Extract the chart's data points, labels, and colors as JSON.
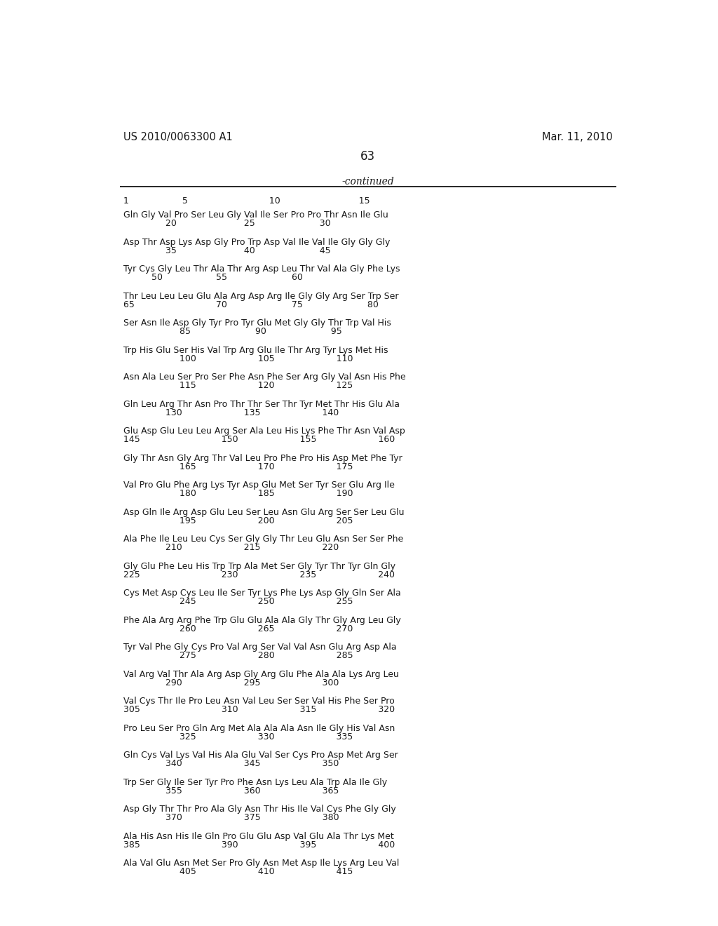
{
  "header_left": "US 2010/0063300 A1",
  "header_right": "Mar. 11, 2010",
  "page_number": "63",
  "continued_label": "-continued",
  "background_color": "#ffffff",
  "text_color": "#1a1a1a",
  "seq_blocks": [
    {
      "seq": "Gln Gly Val Pro Ser Leu Gly Val Ile Ser Pro Pro Thr Asn Ile Glu",
      "nums": "               20                        25                       30"
    },
    {
      "seq": "Asp Thr Asp Lys Asp Gly Pro Trp Asp Val Ile Val Ile Gly Gly Gly",
      "nums": "               35                        40                       45"
    },
    {
      "seq": "Tyr Cys Gly Leu Thr Ala Thr Arg Asp Leu Thr Val Ala Gly Phe Lys",
      "nums": "          50                   55                       60"
    },
    {
      "seq": "Thr Leu Leu Leu Glu Ala Arg Asp Arg Ile Gly Gly Arg Ser Trp Ser",
      "nums": "65                             70                       75                       80"
    },
    {
      "seq": "Ser Asn Ile Asp Gly Tyr Pro Tyr Glu Met Gly Gly Thr Trp Val His",
      "nums": "                    85                       90                       95"
    },
    {
      "seq": "Trp His Glu Ser His Val Trp Arg Glu Ile Thr Arg Tyr Lys Met His",
      "nums": "                    100                      105                      110"
    },
    {
      "seq": "Asn Ala Leu Ser Pro Ser Phe Asn Phe Ser Arg Gly Val Asn His Phe",
      "nums": "                    115                      120                      125"
    },
    {
      "seq": "Gln Leu Arg Thr Asn Pro Thr Thr Ser Thr Tyr Met Thr His Glu Ala",
      "nums": "               130                      135                      140"
    },
    {
      "seq": "Glu Asp Glu Leu Leu Arg Ser Ala Leu His Lys Phe Thr Asn Val Asp",
      "nums": "145                             150                      155                      160"
    },
    {
      "seq": "Gly Thr Asn Gly Arg Thr Val Leu Pro Phe Pro His Asp Met Phe Tyr",
      "nums": "                    165                      170                      175"
    },
    {
      "seq": "Val Pro Glu Phe Arg Lys Tyr Asp Glu Met Ser Tyr Ser Glu Arg Ile",
      "nums": "                    180                      185                      190"
    },
    {
      "seq": "Asp Gln Ile Arg Asp Glu Leu Ser Leu Asn Glu Arg Ser Ser Leu Glu",
      "nums": "                    195                      200                      205"
    },
    {
      "seq": "Ala Phe Ile Leu Leu Cys Ser Gly Gly Thr Leu Glu Asn Ser Ser Phe",
      "nums": "               210                      215                      220"
    },
    {
      "seq": "Gly Glu Phe Leu His Trp Trp Ala Met Ser Gly Tyr Thr Tyr Gln Gly",
      "nums": "225                             230                      235                      240"
    },
    {
      "seq": "Cys Met Asp Cys Leu Ile Ser Tyr Lys Phe Lys Asp Gly Gln Ser Ala",
      "nums": "                    245                      250                      255"
    },
    {
      "seq": "Phe Ala Arg Arg Phe Trp Glu Glu Ala Ala Gly Thr Gly Arg Leu Gly",
      "nums": "                    260                      265                      270"
    },
    {
      "seq": "Tyr Val Phe Gly Cys Pro Val Arg Ser Val Val Asn Glu Arg Asp Ala",
      "nums": "                    275                      280                      285"
    },
    {
      "seq": "Val Arg Val Thr Ala Arg Asp Gly Arg Glu Phe Ala Ala Lys Arg Leu",
      "nums": "               290                      295                      300"
    },
    {
      "seq": "Val Cys Thr Ile Pro Leu Asn Val Leu Ser Ser Val His Phe Ser Pro",
      "nums": "305                             310                      315                      320"
    },
    {
      "seq": "Pro Leu Ser Pro Gln Arg Met Ala Ala Ala Asn Ile Gly His Val Asn",
      "nums": "                    325                      330                      335"
    },
    {
      "seq": "Gln Cys Val Lys Val His Ala Glu Val Ser Cys Pro Asp Met Arg Ser",
      "nums": "               340                      345                      350"
    },
    {
      "seq": "Trp Ser Gly Ile Ser Tyr Pro Phe Asn Lys Leu Ala Trp Ala Ile Gly",
      "nums": "               355                      360                      365"
    },
    {
      "seq": "Asp Gly Thr Thr Pro Ala Gly Asn Thr His Ile Val Cys Phe Gly Gly",
      "nums": "               370                      375                      380"
    },
    {
      "seq": "Ala His Asn His Ile Gln Pro Glu Glu Asp Val Glu Ala Thr Lys Met",
      "nums": "385                             390                      395                      400"
    },
    {
      "seq": "Ala Val Glu Asn Met Ser Pro Gly Asn Met Asp Ile Lys Arg Leu Val",
      "nums": "                    405                      410                      415"
    }
  ]
}
